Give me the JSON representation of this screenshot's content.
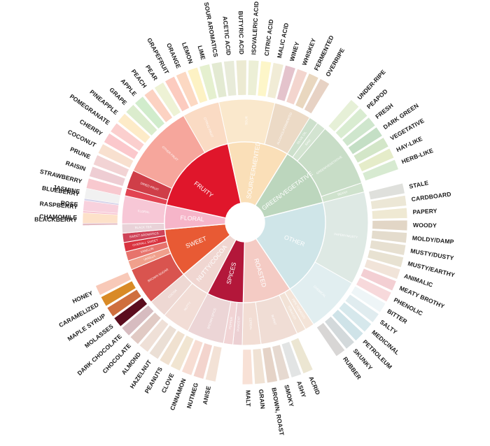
{
  "wheel": {
    "inner": [
      {
        "label": "FRUITY",
        "color": "#e0162b",
        "sub": [
          {
            "label": "BERRY",
            "color": "#e24352",
            "terms": [
              {
                "label": "BLACKBERRY",
                "color": "#e3bcc4"
              },
              {
                "label": "RASPBERRY",
                "color": "#f7c5d2"
              },
              {
                "label": "BLUEBERRY",
                "color": "#d5d3ea"
              },
              {
                "label": "STRAWBERRY",
                "color": "#f8c9cf"
              }
            ]
          },
          {
            "label": "DRIED FRUIT",
            "color": "#cf3e48",
            "terms": [
              {
                "label": "RAISIN",
                "color": "#eecdd3"
              },
              {
                "label": "PRUNE",
                "color": "#f2d3d4"
              }
            ]
          },
          {
            "label": "OTHER FRUIT",
            "color": "#f6a69c",
            "terms": [
              {
                "label": "COCONUT",
                "color": "#f8e0cf"
              },
              {
                "label": "CHERRY",
                "color": "#fbc8cc"
              },
              {
                "label": "POMEGRANATE",
                "color": "#fbcfce"
              },
              {
                "label": "PINEAPPLE",
                "color": "#fdebc8"
              },
              {
                "label": "GRAPE",
                "color": "#dbeccd"
              },
              {
                "label": "APPLE",
                "color": "#d1eccc"
              },
              {
                "label": "PEACH",
                "color": "#fcd2c2"
              },
              {
                "label": "PEAR",
                "color": "#eef2d5"
              }
            ]
          },
          {
            "label": "CITRUS FRUIT",
            "color": "#fadbc4",
            "terms": [
              {
                "label": "GRAPEFRUIT",
                "color": "#fccbbf"
              },
              {
                "label": "ORANGE",
                "color": "#fcd8c2"
              },
              {
                "label": "LEMON",
                "color": "#fdf2c4"
              },
              {
                "label": "LIME",
                "color": "#e5f0cf"
              }
            ]
          }
        ]
      },
      {
        "label": "SOUR/FERMENTED",
        "color": "#fadfb8",
        "sub": [
          {
            "label": "SOUR",
            "color": "#fae8cc",
            "terms": [
              {
                "label": "SOUR AROMATICS",
                "color": "#e3ead2"
              },
              {
                "label": "ACETIC ACID",
                "color": "#e8ebd9"
              },
              {
                "label": "BUTYRIC ACID",
                "color": "#ecead2"
              },
              {
                "label": "ISOVALERIC ACID",
                "color": "#ecefd6"
              },
              {
                "label": "CITRIC ACID",
                "color": "#fdf6c9"
              },
              {
                "label": "MALIC ACID",
                "color": "#f1ecd6"
              }
            ]
          },
          {
            "label": "ALCOHOL/FERMENTED",
            "color": "#ecdac6",
            "terms": [
              {
                "label": "WINEY",
                "color": "#e4c3cc"
              },
              {
                "label": "WHISKEY",
                "color": "#f3d5ce"
              },
              {
                "label": "FERMENTED",
                "color": "#e9d7bf"
              },
              {
                "label": "OVERRIPE",
                "color": "#e7d2c4"
              }
            ]
          }
        ]
      },
      {
        "label": "GREEN/VEGETATIVE",
        "color": "#bcd6bd",
        "sub": [
          {
            "label": "OLIVE OIL",
            "color": "#cde0cc",
            "terms": []
          },
          {
            "label": "RAW",
            "color": "#d3e4d1",
            "terms": []
          },
          {
            "label": "GREEN/VEGETATIVE",
            "color": "#c8ddc7",
            "terms": [
              {
                "label": "UNDER-RIPE",
                "color": "#e6f0d7"
              },
              {
                "label": "PEAPOD",
                "color": "#d9ecd1"
              },
              {
                "label": "FRESH",
                "color": "#cfe6cd"
              },
              {
                "label": "DARK GREEN",
                "color": "#c4dfc5"
              },
              {
                "label": "VEGETATIVE",
                "color": "#d3e6c8"
              },
              {
                "label": "HAY-LIKE",
                "color": "#e5ecc9"
              },
              {
                "label": "HERB-LIKE",
                "color": "#d7ead1"
              }
            ]
          },
          {
            "label": "BEANY",
            "color": "#cfe2cd",
            "terms": []
          }
        ]
      },
      {
        "label": "OTHER",
        "color": "#cfe5e8",
        "sub": [
          {
            "label": "PAPERY/MUSTY",
            "color": "#dee9e4",
            "terms": [
              {
                "label": "STALE",
                "color": "#dfe0dc"
              },
              {
                "label": "CARDBOARD",
                "color": "#ece7d6"
              },
              {
                "label": "PAPERY",
                "color": "#efe9d3"
              },
              {
                "label": "WOODY",
                "color": "#e2d6c6"
              },
              {
                "label": "MOLDY/DAMP",
                "color": "#e4dccd"
              },
              {
                "label": "MUSTY/DUSTY",
                "color": "#e7e0d1"
              },
              {
                "label": "MUSTY/EARTHY",
                "color": "#e8e2d2"
              },
              {
                "label": "ANIMALIC",
                "color": "#f1e4d9"
              },
              {
                "label": "MEATY BROTHY",
                "color": "#f3cfd3"
              },
              {
                "label": "PHENOLIC",
                "color": "#f7d9db"
              }
            ]
          },
          {
            "label": "CHEMICAL",
            "color": "#e1eef0",
            "terms": [
              {
                "label": "BITTER",
                "color": "#eef5f7"
              },
              {
                "label": "SALTY",
                "color": "#e0ecef"
              },
              {
                "label": "MEDICINAL",
                "color": "#d6e8ec"
              },
              {
                "label": "PETROLEUM",
                "color": "#cfe3e8"
              },
              {
                "label": "SKUNKY",
                "color": "#d3d9db"
              },
              {
                "label": "RUBBER",
                "color": "#d8d6d5"
              }
            ]
          }
        ]
      },
      {
        "label": "ROASTED",
        "color": "#f4cbc4",
        "sub": [
          {
            "label": "PIPE TOBACCO",
            "color": "#f4e4d8",
            "terms": []
          },
          {
            "label": "TOBACCO",
            "color": "#f2e2d6",
            "terms": []
          },
          {
            "label": "BURNT",
            "color": "#f0ddd5",
            "terms": [
              {
                "label": "ACRID",
                "color": "#ece6d2"
              },
              {
                "label": "ASHY",
                "color": "#e2e4e4"
              },
              {
                "label": "SMOKY",
                "color": "#e6d9d0"
              },
              {
                "label": "BROWN, ROAST",
                "color": "#e5d3c7"
              }
            ]
          },
          {
            "label": "CEREAL",
            "color": "#f2ddd4",
            "terms": [
              {
                "label": "GRAIN",
                "color": "#f0e2d4"
              },
              {
                "label": "MALT",
                "color": "#f8e1d6"
              }
            ]
          }
        ]
      },
      {
        "label": "SPICES",
        "color": "#b3173a",
        "sub": [
          {
            "label": "PUNGENT",
            "color": "#ecd0d3",
            "terms": []
          },
          {
            "label": "PEPPER",
            "color": "#f1d4d5",
            "terms": []
          },
          {
            "label": "BROWN SPICE",
            "color": "#ecd5d6",
            "terms": [
              {
                "label": "ANISE",
                "color": "#f3e2d6"
              },
              {
                "label": "NUTMEG",
                "color": "#f3d4cd"
              },
              {
                "label": "CINNAMON",
                "color": "#f7ddd3"
              },
              {
                "label": "CLOVE",
                "color": "#f1e5d1"
              }
            ]
          }
        ]
      },
      {
        "label": "NUTTY/COCOA",
        "color": "#f0d6d1",
        "sub": [
          {
            "label": "NUTTY",
            "color": "#f2ddd6",
            "terms": [
              {
                "label": "PEANUTS",
                "color": "#f0e1d0"
              },
              {
                "label": "HAZELNUT",
                "color": "#ebdfd5"
              },
              {
                "label": "ALMOND",
                "color": "#efe0d7"
              }
            ]
          },
          {
            "label": "COCOA",
            "color": "#eed8d3",
            "terms": [
              {
                "label": "CHOCOLATE",
                "color": "#e1cac4"
              },
              {
                "label": "DARK CHOCOLATE",
                "color": "#d7bcc0"
              }
            ]
          }
        ]
      },
      {
        "label": "SWEET",
        "color": "#e85a34",
        "sub": [
          {
            "label": "BROWN SUGAR",
            "color": "#d9544f",
            "terms": [
              {
                "label": "MOLASSES",
                "color": "#5b0d1e"
              },
              {
                "label": "MAPLE SYRUP",
                "color": "#cf6f3e"
              },
              {
                "label": "CARAMELIZED",
                "color": "#d98a26"
              },
              {
                "label": "HONEY",
                "color": "#f8c9b8"
              }
            ]
          },
          {
            "label": "VANILLA",
            "color": "#f0a08c",
            "terms": []
          },
          {
            "label": "VANILLIN",
            "color": "#e7736c",
            "terms": []
          },
          {
            "label": "OVERALL SWEET",
            "color": "#d9333f",
            "terms": []
          },
          {
            "label": "SWEET AROMATICS",
            "color": "#cf4358",
            "terms": []
          }
        ]
      },
      {
        "label": "FLORAL",
        "color": "#f6b5c9",
        "sub": [
          {
            "label": "BLACK TEA",
            "color": "#e9d2d8",
            "terms": []
          },
          {
            "label": "FLORAL",
            "color": "#f7c7d6",
            "terms": [
              {
                "label": "CHAMOMILE",
                "color": "#fde1c9"
              },
              {
                "label": "ROSE",
                "color": "#f8d1dd"
              },
              {
                "label": "JASMINE",
                "color": "#f1f1f1"
              }
            ]
          }
        ]
      }
    ]
  }
}
